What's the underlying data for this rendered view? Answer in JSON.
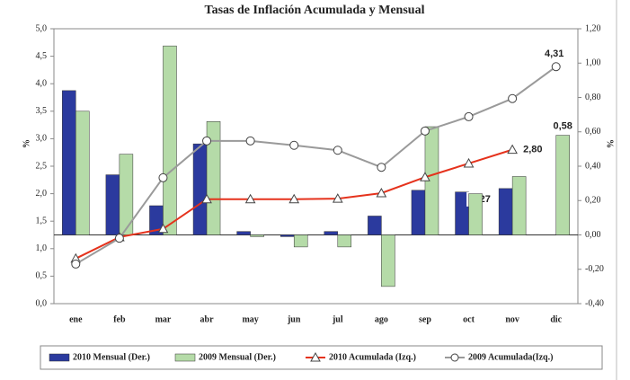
{
  "chart_data": {
    "type": "bar_line",
    "title": "Tasas de Inflación Acumulada y Mensual",
    "ylabel": "%",
    "y2label": "%",
    "categories": [
      "ene",
      "feb",
      "mar",
      "abr",
      "may",
      "jun",
      "jul",
      "ago",
      "sep",
      "oct",
      "nov",
      "dic"
    ],
    "ylim": [
      0,
      5
    ],
    "yticks": [
      {
        "value": 0,
        "label": "0,0"
      },
      {
        "value": 0.5,
        "label": "0,5"
      },
      {
        "value": 1,
        "label": "1,0"
      },
      {
        "value": 1.5,
        "label": "1,5"
      },
      {
        "value": 2,
        "label": "2,0"
      },
      {
        "value": 2.5,
        "label": "2,5"
      },
      {
        "value": 3,
        "label": "3,0"
      },
      {
        "value": 3.5,
        "label": "3,5"
      },
      {
        "value": 4,
        "label": "4,0"
      },
      {
        "value": 4.5,
        "label": "4,5"
      },
      {
        "value": 5,
        "label": "5,0"
      }
    ],
    "y2lim": [
      -0.4,
      1.2
    ],
    "y2ticks": [
      {
        "value": -0.4,
        "label": "-0,40"
      },
      {
        "value": -0.2,
        "label": "-0,20"
      },
      {
        "value": 0,
        "label": "0,00"
      },
      {
        "value": 0.2,
        "label": "0,20"
      },
      {
        "value": 0.4,
        "label": "0,40"
      },
      {
        "value": 0.6,
        "label": "0,60"
      },
      {
        "value": 0.8,
        "label": "0,80"
      },
      {
        "value": 1,
        "label": "1,00"
      },
      {
        "value": 1.2,
        "label": "1,20"
      }
    ],
    "legend": "bottom",
    "series": [
      {
        "name": "2010 Mensual (Der.)",
        "kind": "bar",
        "axis": "y2",
        "color": "#2b3a9e",
        "values": [
          0.84,
          0.35,
          0.17,
          0.53,
          0.02,
          -0.01,
          0.02,
          0.11,
          0.26,
          0.25,
          0.27,
          null
        ],
        "value_labels": [
          null,
          null,
          null,
          null,
          null,
          null,
          null,
          null,
          null,
          null,
          "0,27",
          null
        ]
      },
      {
        "name": "2009 Mensual (Der.)",
        "kind": "bar",
        "axis": "y2",
        "color": "#b5dba8",
        "values": [
          0.72,
          0.47,
          1.1,
          0.66,
          -0.01,
          -0.07,
          -0.07,
          -0.3,
          0.63,
          0.24,
          0.34,
          0.58
        ],
        "value_labels": [
          null,
          null,
          null,
          null,
          null,
          null,
          null,
          null,
          null,
          null,
          null,
          "0,58"
        ]
      },
      {
        "name": "2010 Acumulada (Izq.)",
        "kind": "line",
        "marker": "triangle",
        "color": "#e5321c",
        "values": [
          0.82,
          1.21,
          1.36,
          1.9,
          1.9,
          1.9,
          1.91,
          2.01,
          2.3,
          2.55,
          2.8,
          null
        ],
        "value_labels": [
          null,
          null,
          null,
          null,
          null,
          null,
          null,
          null,
          null,
          null,
          "2,80",
          null
        ]
      },
      {
        "name": "2009 Acumulada(Izq.)",
        "kind": "line",
        "marker": "circle",
        "color": "#9a9a9a",
        "values": [
          0.72,
          1.19,
          2.29,
          2.96,
          2.96,
          2.88,
          2.79,
          2.48,
          3.14,
          3.4,
          3.73,
          4.31
        ],
        "value_labels": [
          null,
          null,
          null,
          null,
          null,
          null,
          null,
          null,
          null,
          null,
          null,
          "4,31"
        ]
      }
    ]
  }
}
